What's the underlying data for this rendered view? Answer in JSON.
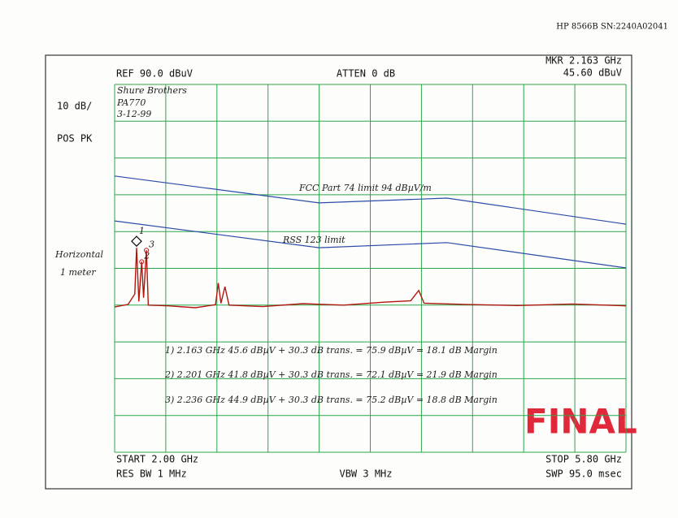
{
  "instrument": "HP 8566B SN:2240A02041",
  "chart_data": {
    "type": "line",
    "ref_level": "REF 90.0 dBuV",
    "atten": "ATTEN 0 dB",
    "marker_freq": "MKR 2.163 GHz",
    "marker_level": "45.60 dBuV",
    "scale": "10 dB/",
    "detector": "POS PK",
    "start": "START 2.00 GHz",
    "stop": "STOP 5.80 GHz",
    "rbw": "RES BW 1 MHz",
    "vbw": "VBW 3 MHz",
    "sweep": "SWP 95.0 msec",
    "xlim": [
      2.0,
      5.8
    ],
    "ylim": [
      -10,
      90
    ],
    "series": [
      {
        "name": "FCC Part 74 limit 94 dBµV/m",
        "color": "#2a4aa8",
        "x": [
          2.0,
          3.52,
          4.47,
          5.8
        ],
        "values": [
          65.1,
          57.8,
          59.1,
          52.0
        ]
      },
      {
        "name": "RSS 123 limit",
        "color": "#2a4aa8",
        "x": [
          2.0,
          3.52,
          4.47,
          5.8
        ],
        "values": [
          52.9,
          45.6,
          47.0,
          40.1
        ]
      },
      {
        "color": "#b3160f",
        "x": [
          2.0,
          2.1,
          2.15,
          2.163,
          2.18,
          2.201,
          2.215,
          2.236,
          2.25,
          2.4,
          2.6,
          2.75,
          2.77,
          2.79,
          2.82,
          2.85,
          3.1,
          3.4,
          3.7,
          4.0,
          4.2,
          4.26,
          4.3,
          4.6,
          5.0,
          5.4,
          5.8
        ],
        "values": [
          29.5,
          30.2,
          33,
          45.6,
          31,
          41.8,
          32,
          44.9,
          30,
          29.8,
          29.3,
          30.1,
          36,
          30.5,
          35,
          30,
          29.6,
          30.4,
          30,
          30.8,
          31.2,
          34,
          30.5,
          30.2,
          29.9,
          30.3,
          29.8
        ]
      }
    ],
    "markers": [
      {
        "label": "1",
        "x": 2.163,
        "y": 45.6
      },
      {
        "label": "2",
        "x": 2.201,
        "y": 41.8
      },
      {
        "label": "3",
        "x": 2.236,
        "y": 44.9
      }
    ],
    "notes": [
      "Shure Brothers",
      "PA770",
      "3-12-99",
      "Horizontal",
      "1 meter",
      "1) 2.163 GHz 45.6 dBµV + 30.3 dB trans. = 75.9 dBµV = 18.1 dB Margin",
      "2) 2.201 GHz 41.8 dBµV + 30.3 dB trans. = 72.1 dBµV = 21.9 dB Margin",
      "3) 2.236 GHz 44.9 dBµV + 30.3 dB trans. = 75.2 dBµV = 18.8 dB Margin"
    ],
    "stamp": "FINAL"
  }
}
